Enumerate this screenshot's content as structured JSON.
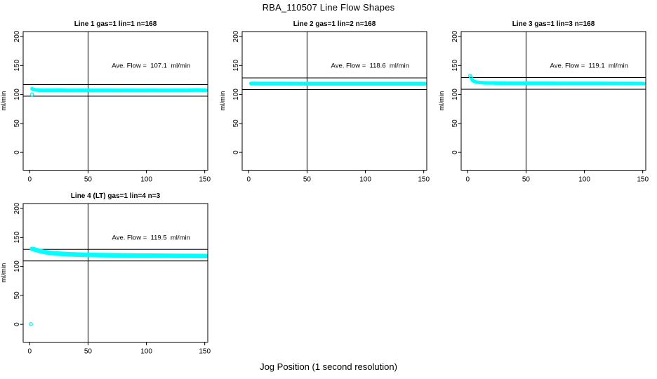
{
  "main_title": "RBA_110507  Line Flow Shapes",
  "xlabel": "Jog Position (1 second resolution)",
  "colors": {
    "data_color": "#00ffff",
    "axis_color": "#000000",
    "background": "#ffffff"
  },
  "chart_data": [
    {
      "type": "scatter",
      "title": "Line 1 gas=1 lin=1 n=168",
      "ylabel": "ml/min",
      "annotation": "Ave. Flow =  107.1  ml/min",
      "ave_flow": 107.1,
      "n": 168,
      "xlim": [
        -5.6,
        152.6
      ],
      "ylim": [
        -30.7,
        208.5
      ],
      "xticks": [
        0,
        50,
        100,
        150
      ],
      "yticks": [
        0,
        50,
        100,
        150,
        200
      ],
      "hlines": [
        117.1,
        97.1
      ],
      "vline": 50,
      "band_width": 5,
      "band": [
        [
          2,
          110
        ],
        [
          3,
          108.8
        ],
        [
          4,
          108.2
        ],
        [
          6,
          107.6
        ],
        [
          9,
          107.4
        ],
        [
          15,
          107.2
        ],
        [
          25,
          107.4
        ],
        [
          35,
          107.1
        ],
        [
          45,
          107.3
        ],
        [
          55,
          107.1
        ],
        [
          65,
          107.3
        ],
        [
          75,
          107.1
        ],
        [
          85,
          107.3
        ],
        [
          95,
          107.1
        ],
        [
          105,
          107.3
        ],
        [
          115,
          107.1
        ],
        [
          125,
          107.3
        ],
        [
          135,
          107.2
        ],
        [
          143,
          107.6
        ],
        [
          147,
          107.4
        ],
        [
          151,
          107.2
        ]
      ],
      "outliers": [
        [
          2,
          100
        ]
      ]
    },
    {
      "type": "scatter",
      "title": "Line 2 gas=1 lin=2 n=168",
      "ylabel": "ml/min",
      "annotation": "Ave. Flow =  118.6  ml/min",
      "ave_flow": 118.6,
      "n": 168,
      "xlim": [
        -5.6,
        152.6
      ],
      "ylim": [
        -30.7,
        208.5
      ],
      "xticks": [
        0,
        50,
        100,
        150
      ],
      "yticks": [
        0,
        50,
        100,
        150,
        200
      ],
      "hlines": [
        128.6,
        108.6
      ],
      "vline": 50,
      "band_width": 5.5,
      "band": [
        [
          2,
          118.9
        ],
        [
          6,
          118.8
        ],
        [
          15,
          118.7
        ],
        [
          30,
          118.7
        ],
        [
          50,
          118.6
        ],
        [
          70,
          118.6
        ],
        [
          90,
          118.6
        ],
        [
          110,
          118.6
        ],
        [
          130,
          118.6
        ],
        [
          145,
          118.6
        ],
        [
          151,
          118.5
        ]
      ],
      "outliers": []
    },
    {
      "type": "scatter",
      "title": "Line 3 gas=1 lin=3 n=168",
      "ylabel": "ml/min",
      "annotation": "Ave. Flow =  119.1  ml/min",
      "ave_flow": 119.1,
      "n": 168,
      "xlim": [
        -5.6,
        152.6
      ],
      "ylim": [
        -30.7,
        208.5
      ],
      "xticks": [
        0,
        50,
        100,
        150
      ],
      "yticks": [
        0,
        50,
        100,
        150,
        200
      ],
      "hlines": [
        129.1,
        109.1
      ],
      "vline": 50,
      "band_width": 5,
      "band": [
        [
          3.5,
          126
        ],
        [
          4.5,
          123.8
        ],
        [
          6,
          122.3
        ],
        [
          8,
          121.3
        ],
        [
          10,
          120.7
        ],
        [
          13,
          120.2
        ],
        [
          17,
          119.9
        ],
        [
          22,
          119.7
        ],
        [
          28,
          119.5
        ],
        [
          35,
          119.4
        ],
        [
          45,
          119.4
        ],
        [
          55,
          119.3
        ],
        [
          70,
          119.3
        ],
        [
          85,
          119.2
        ],
        [
          100,
          119.2
        ],
        [
          115,
          119.1
        ],
        [
          130,
          119
        ],
        [
          142,
          119
        ],
        [
          151,
          118.9
        ]
      ],
      "outliers": [
        [
          2,
          132.5
        ],
        [
          2.8,
          129.7
        ]
      ]
    },
    {
      "type": "scatter",
      "title": "Line 4 (LT) gas=1 lin=4 n=3",
      "ylabel": "ml/min",
      "annotation": "Ave. Flow =  119.5  ml/min",
      "ave_flow": 119.5,
      "n": 3,
      "xlim": [
        -5.6,
        152.6
      ],
      "ylim": [
        -30.7,
        208.5
      ],
      "xticks": [
        0,
        50,
        100,
        150
      ],
      "yticks": [
        0,
        50,
        100,
        150,
        200
      ],
      "hlines": [
        129.5,
        109.5
      ],
      "vline": 50,
      "band_width": 6.5,
      "band": [
        [
          2,
          130.2
        ],
        [
          3,
          129.8
        ],
        [
          4,
          129.3
        ],
        [
          5,
          128.8
        ],
        [
          6,
          128.2
        ],
        [
          7,
          127.6
        ],
        [
          8,
          127
        ],
        [
          10,
          126
        ],
        [
          12,
          125.2
        ],
        [
          14,
          124.4
        ],
        [
          16,
          123.8
        ],
        [
          18,
          123.3
        ],
        [
          20,
          122.8
        ],
        [
          23,
          122.3
        ],
        [
          26,
          121.9
        ],
        [
          30,
          121.4
        ],
        [
          34,
          121
        ],
        [
          38,
          120.7
        ],
        [
          42,
          120.4
        ],
        [
          46,
          120.2
        ],
        [
          50,
          120
        ],
        [
          55,
          119.7
        ],
        [
          60,
          119.5
        ],
        [
          66,
          119.3
        ],
        [
          72,
          119.1
        ],
        [
          80,
          118.9
        ],
        [
          88,
          118.7
        ],
        [
          96,
          118.6
        ],
        [
          104,
          118.5
        ],
        [
          112,
          118.4
        ],
        [
          120,
          118.3
        ],
        [
          128,
          118.2
        ],
        [
          136,
          118.1
        ],
        [
          144,
          118
        ],
        [
          151,
          117.9
        ]
      ],
      "outliers": [
        [
          1,
          0.5
        ]
      ]
    }
  ]
}
